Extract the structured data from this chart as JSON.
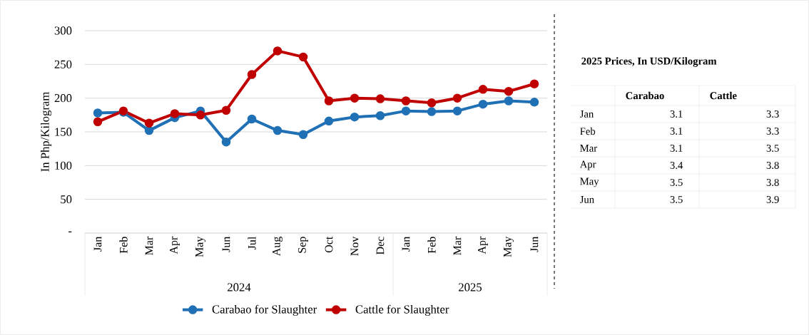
{
  "chart_data": [
    {
      "type": "line",
      "ylabel": "In Php/Kilogram",
      "categories": [
        "Jan",
        "Feb",
        "Mar",
        "Apr",
        "May",
        "Jun",
        "Jul",
        "Aug",
        "Sep",
        "Oct",
        "Nov",
        "Dec",
        "Jan",
        "Feb",
        "Mar",
        "Apr",
        "May",
        "Jun"
      ],
      "series": [
        {
          "name": "Carabao for Slaughter",
          "color": "#1f70b5",
          "values": [
            178,
            179,
            152,
            171,
            181,
            135,
            169,
            152,
            146,
            166,
            172,
            174,
            181,
            180,
            181,
            191,
            196,
            194
          ]
        },
        {
          "name": "Cattle for Slaughter",
          "color": "#c00000",
          "values": [
            165,
            181,
            163,
            177,
            175,
            182,
            235,
            270,
            261,
            196,
            200,
            199,
            196,
            193,
            200,
            213,
            210,
            221
          ]
        }
      ],
      "annotations": [
        "2024",
        "2025"
      ],
      "ylim": [
        0,
        300
      ],
      "yticks": [
        {
          "value": 0,
          "label": "-"
        },
        50,
        100,
        150,
        200,
        250,
        300
      ],
      "grid": "y",
      "legend": "bottom",
      "marker": "circle",
      "line_style": "solid"
    },
    {
      "type": "other",
      "title": "2025 Prices, In USD/Kilogram",
      "categories": [
        "Jan",
        "Feb",
        "Mar",
        "Apr",
        "May",
        "Jun"
      ],
      "series": [
        {
          "name": "Carabao",
          "values": [
            3.1,
            3.1,
            3.1,
            3.4,
            3.5,
            3.5
          ]
        },
        {
          "name": "Cattle",
          "values": [
            3.3,
            3.3,
            3.5,
            3.8,
            3.8,
            3.9
          ]
        }
      ],
      "data_labels": true
    }
  ]
}
